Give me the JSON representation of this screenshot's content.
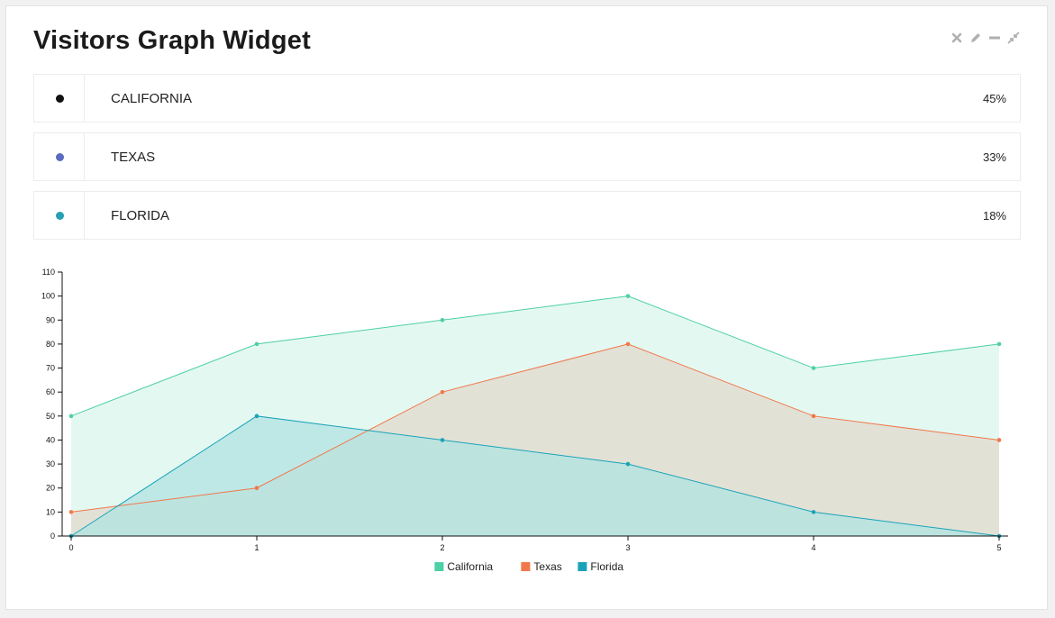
{
  "widget": {
    "title": "Visitors Graph Widget",
    "controls": [
      {
        "name": "close-icon",
        "glyph": "close"
      },
      {
        "name": "edit-icon",
        "glyph": "pencil"
      },
      {
        "name": "minimize-icon",
        "glyph": "minus"
      },
      {
        "name": "collapse-icon",
        "glyph": "compress"
      }
    ]
  },
  "states": [
    {
      "label": "CALIFORNIA",
      "percent": "45%",
      "color": "#111111"
    },
    {
      "label": "TEXAS",
      "percent": "33%",
      "color": "#5c6bc0"
    },
    {
      "label": "FLORIDA",
      "percent": "18%",
      "color": "#26a0b4"
    }
  ],
  "chart_data": {
    "type": "area",
    "x": [
      0,
      1,
      2,
      3,
      4,
      5
    ],
    "ylim": [
      0,
      110
    ],
    "yticks": [
      0,
      10,
      20,
      30,
      40,
      50,
      60,
      70,
      80,
      90,
      100,
      110
    ],
    "series": [
      {
        "name": "California",
        "color": "#4dd0a7",
        "fill": "#dbf5ee",
        "values": [
          50,
          80,
          90,
          100,
          70,
          80
        ]
      },
      {
        "name": "Texas",
        "color": "#f0784a",
        "fill": "#e1d9cc",
        "values": [
          10,
          20,
          60,
          80,
          50,
          40
        ]
      },
      {
        "name": "Florida",
        "color": "#1aa3b8",
        "fill": "#b0e3e2",
        "values": [
          0,
          50,
          40,
          30,
          10,
          0
        ]
      }
    ],
    "legend_position": "bottom-center"
  }
}
